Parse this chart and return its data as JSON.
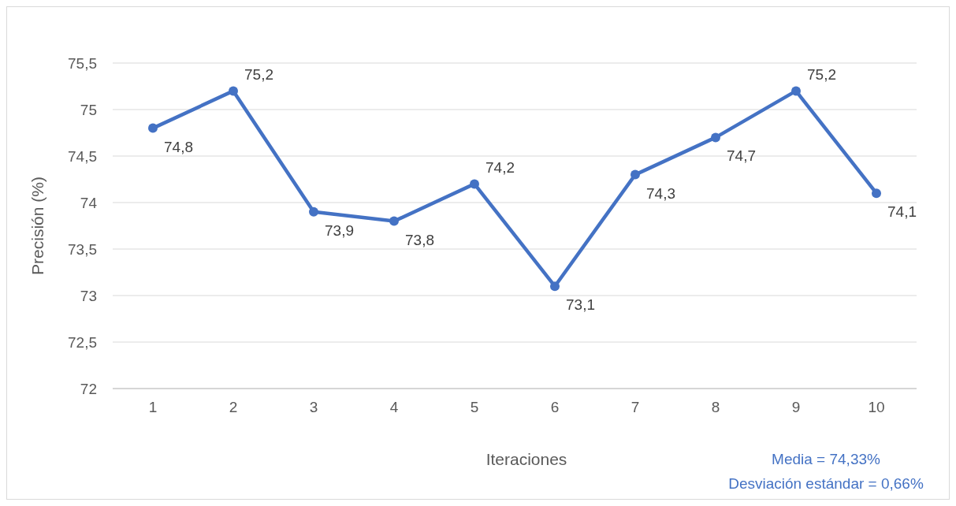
{
  "chart_data": {
    "type": "line",
    "xlabel": "Iteraciones",
    "ylabel": "Precisión (%)",
    "categories": [
      "1",
      "2",
      "3",
      "4",
      "5",
      "6",
      "7",
      "8",
      "9",
      "10"
    ],
    "series": [
      {
        "color": "#4472c4",
        "values": [
          74.8,
          75.2,
          73.9,
          73.8,
          74.2,
          73.1,
          74.3,
          74.7,
          75.2,
          74.1
        ],
        "value_labels": [
          "74,8",
          "75,2",
          "73,9",
          "73,8",
          "74,2",
          "73,1",
          "74,3",
          "74,7",
          "75,2",
          "74,1"
        ]
      }
    ],
    "ylim": [
      72,
      75.5
    ],
    "yticks": [
      72,
      {
        "value": 72.5,
        "label": "72,5"
      },
      73,
      {
        "value": 73.5,
        "label": "73,5"
      },
      74,
      {
        "value": 74.5,
        "label": "74,5"
      },
      75,
      {
        "value": 75.5,
        "label": "75,5"
      }
    ],
    "grid": "y",
    "marker": "circle",
    "line_style": "solid",
    "annotations": [
      "Media = 74,33%",
      "Desviación estándar = 0,66%"
    ]
  }
}
